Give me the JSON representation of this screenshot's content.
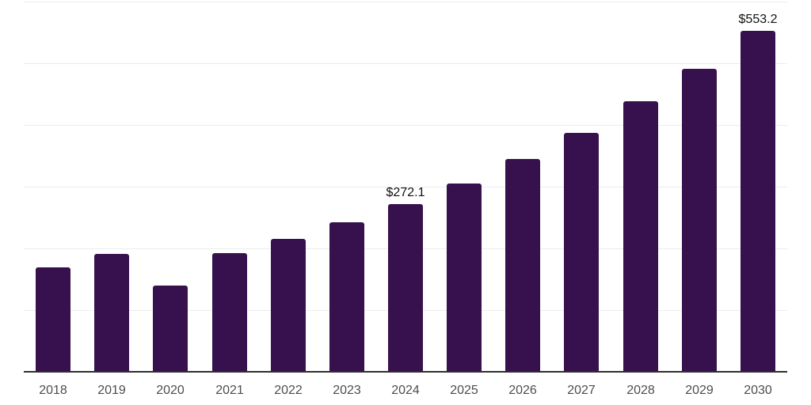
{
  "chart_data": {
    "type": "bar",
    "title": "",
    "xlabel": "",
    "ylabel": "",
    "categories": [
      "2018",
      "2019",
      "2020",
      "2021",
      "2022",
      "2023",
      "2024",
      "2025",
      "2026",
      "2027",
      "2028",
      "2029",
      "2030"
    ],
    "values": [
      169.3,
      191.2,
      139.8,
      192.4,
      215.6,
      242.5,
      272.1,
      305.3,
      345.2,
      387.5,
      438.9,
      491.5,
      553.2
    ],
    "point_labels": [
      "",
      "",
      "",
      "",
      "",
      "",
      "$272.1",
      "",
      "",
      "",
      "",
      "",
      "$553.2"
    ],
    "ylim": [
      0,
      600
    ],
    "gridline_interval": 100,
    "grid_visible": true,
    "legend_position": "none",
    "colors": {
      "bar": "#36114e",
      "gridline": "#ececec",
      "axis_line": "#2e2e2e",
      "tick_label": "#4d4d4d",
      "value_label": "#111111",
      "background": "#ffffff"
    }
  }
}
